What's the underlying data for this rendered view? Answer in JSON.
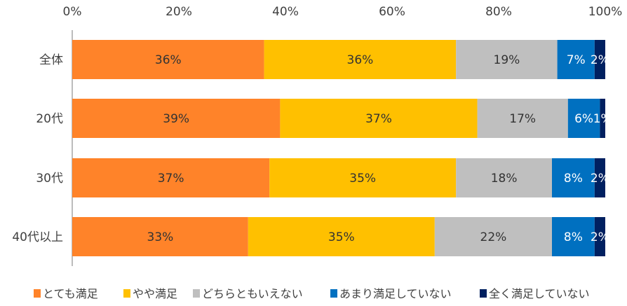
{
  "chart_data": {
    "type": "bar",
    "orientation": "horizontal",
    "stacked": true,
    "title": "",
    "xlabel": "",
    "ylabel": "",
    "xlim": [
      0,
      100
    ],
    "xticks": [
      "0%",
      "20%",
      "40%",
      "60%",
      "80%",
      "100%"
    ],
    "xtick_values": [
      0,
      20,
      40,
      60,
      80,
      100
    ],
    "grid": false,
    "legend_position": "bottom",
    "categories": [
      "全体",
      "20代",
      "30代",
      "40代以上"
    ],
    "series": [
      {
        "name": "とても満足",
        "color": "#FF8329",
        "label_color": "#333333",
        "values": [
          36,
          39,
          37,
          33
        ]
      },
      {
        "name": "やや満足",
        "color": "#FFC000",
        "label_color": "#333333",
        "values": [
          36,
          37,
          35,
          35
        ]
      },
      {
        "name": "どちらともいえない",
        "color": "#BFBFBF",
        "label_color": "#333333",
        "values": [
          19,
          17,
          18,
          22
        ]
      },
      {
        "name": "あまり満足していない",
        "color": "#0070C0",
        "label_color": "#FFFFFF",
        "values": [
          7,
          6,
          8,
          8
        ]
      },
      {
        "name": "全く満足していない",
        "color": "#002060",
        "label_color": "#FFFFFF",
        "values": [
          2,
          1,
          2,
          2
        ]
      }
    ]
  }
}
